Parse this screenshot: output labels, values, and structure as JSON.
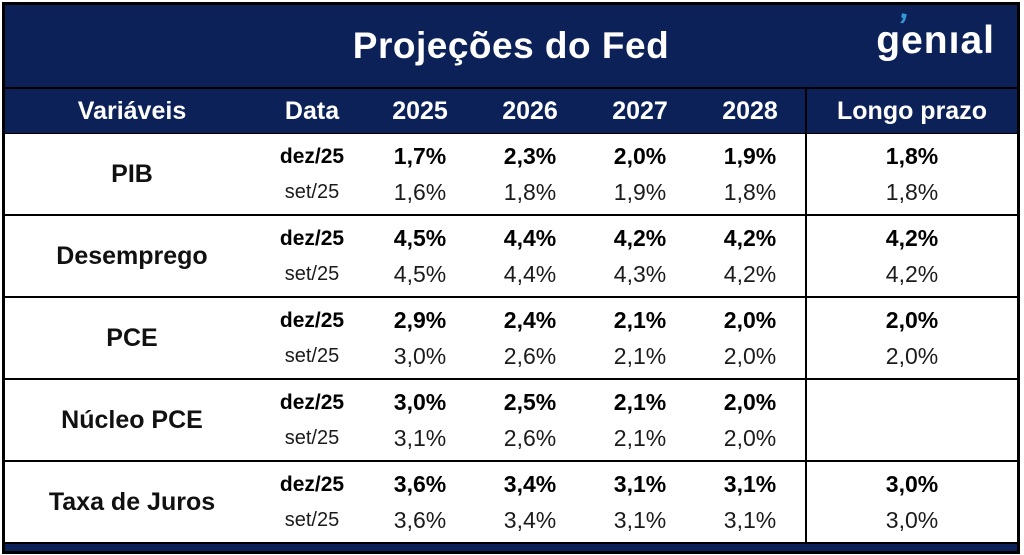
{
  "title": "Projeções do Fed",
  "logo": {
    "text": "genıal",
    "accent_glyph": "’",
    "accent_color": "#3598d6"
  },
  "colors": {
    "navy": "#0d2159",
    "border": "#000000",
    "body_bg": "#ffffff",
    "text": "#1b1b1b"
  },
  "header": {
    "columns": [
      "Variáveis",
      "Data",
      "2025",
      "2026",
      "2027",
      "2028",
      "Longo prazo"
    ]
  },
  "chart_data": {
    "type": "table",
    "title": "Projeções do Fed",
    "columns": [
      "Variáveis",
      "Data",
      "2025",
      "2026",
      "2027",
      "2028",
      "Longo prazo"
    ],
    "rows": [
      {
        "variable": "PIB",
        "lines": [
          {
            "data": "dez/25",
            "values": [
              "1,7%",
              "2,3%",
              "2,0%",
              "1,9%"
            ],
            "longo": "1,8%"
          },
          {
            "data": "set/25",
            "values": [
              "1,6%",
              "1,8%",
              "1,9%",
              "1,8%"
            ],
            "longo": "1,8%"
          }
        ]
      },
      {
        "variable": "Desemprego",
        "lines": [
          {
            "data": "dez/25",
            "values": [
              "4,5%",
              "4,4%",
              "4,2%",
              "4,2%"
            ],
            "longo": "4,2%"
          },
          {
            "data": "set/25",
            "values": [
              "4,5%",
              "4,4%",
              "4,3%",
              "4,2%"
            ],
            "longo": "4,2%"
          }
        ]
      },
      {
        "variable": "PCE",
        "lines": [
          {
            "data": "dez/25",
            "values": [
              "2,9%",
              "2,4%",
              "2,1%",
              "2,0%"
            ],
            "longo": "2,0%"
          },
          {
            "data": "set/25",
            "values": [
              "3,0%",
              "2,6%",
              "2,1%",
              "2,0%"
            ],
            "longo": "2,0%"
          }
        ]
      },
      {
        "variable": "Núcleo PCE",
        "lines": [
          {
            "data": "dez/25",
            "values": [
              "3,0%",
              "2,5%",
              "2,1%",
              "2,0%"
            ],
            "longo": ""
          },
          {
            "data": "set/25",
            "values": [
              "3,1%",
              "2,6%",
              "2,1%",
              "2,0%"
            ],
            "longo": ""
          }
        ]
      },
      {
        "variable": "Taxa de Juros",
        "lines": [
          {
            "data": "dez/25",
            "values": [
              "3,6%",
              "3,4%",
              "3,1%",
              "3,1%"
            ],
            "longo": "3,0%"
          },
          {
            "data": "set/25",
            "values": [
              "3,6%",
              "3,4%",
              "3,1%",
              "3,1%"
            ],
            "longo": "3,0%"
          }
        ]
      }
    ]
  }
}
